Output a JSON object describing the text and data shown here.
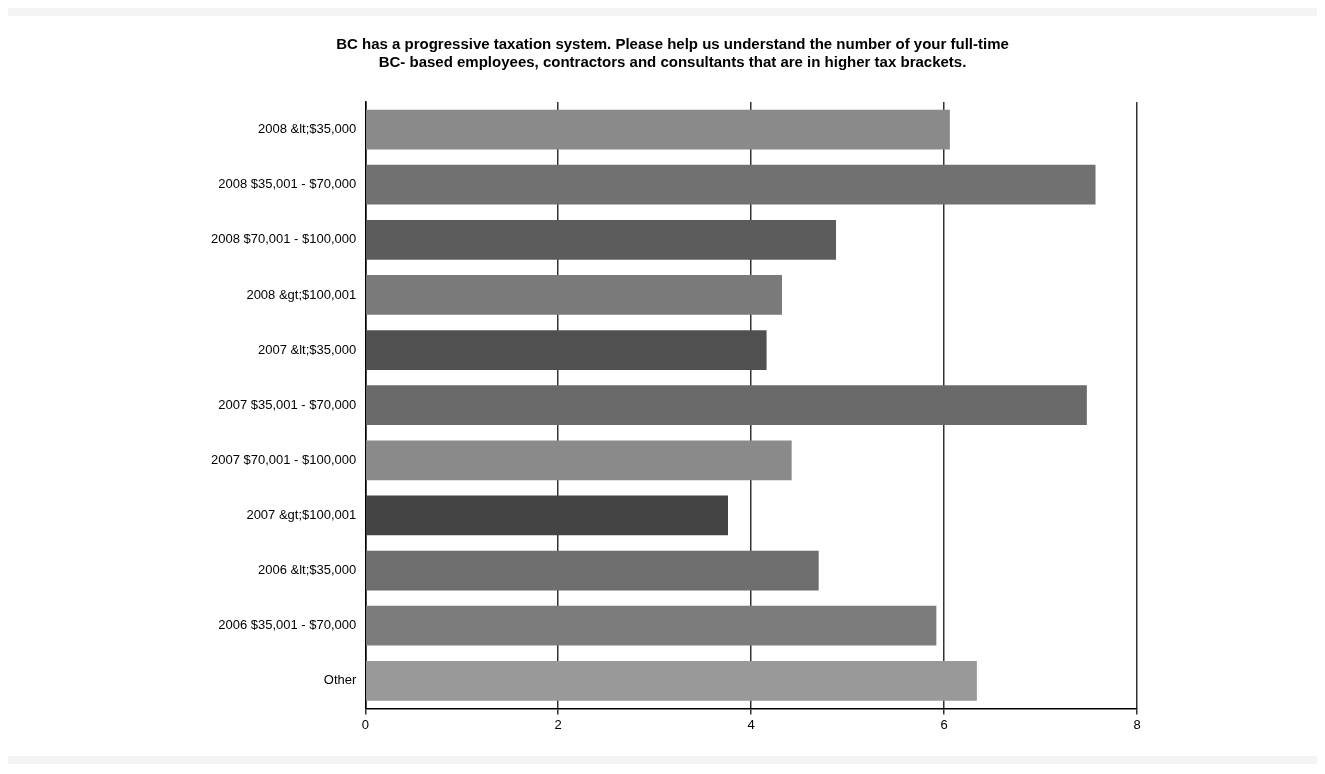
{
  "chart_data": {
    "type": "bar",
    "orientation": "horizontal",
    "title": "BC has a progressive taxation system. Please help us understand the number of your full-time\nBC- based employees, contractors and consultants that are in higher tax brackets.",
    "categories": [
      "2008 &lt;$35,000",
      "2008 $35,001 - $70,000",
      "2008 $70,001 - $100,000",
      "2008 &gt;$100,001",
      "2007 &lt;$35,000",
      "2007 $35,001 - $70,000",
      "2007 $70,001 - $100,000",
      "2007 &gt;$100,001",
      "2006 &lt;$35,000",
      "2006 $35,001 - $70,000",
      "Other"
    ],
    "values": [
      6.06,
      7.57,
      4.88,
      4.32,
      4.16,
      7.48,
      4.42,
      3.76,
      4.7,
      5.92,
      6.34
    ],
    "colors": [
      "#8a8a8a",
      "#717171",
      "#5c5c5c",
      "#7a7a7a",
      "#505050",
      "#6a6a6a",
      "#8a8a8a",
      "#444444",
      "#6e6e6e",
      "#7c7c7c",
      "#999999"
    ],
    "xlim": [
      0,
      8
    ],
    "xticks": [
      0,
      2,
      4,
      6,
      8
    ],
    "grid": "x",
    "legend": false
  }
}
